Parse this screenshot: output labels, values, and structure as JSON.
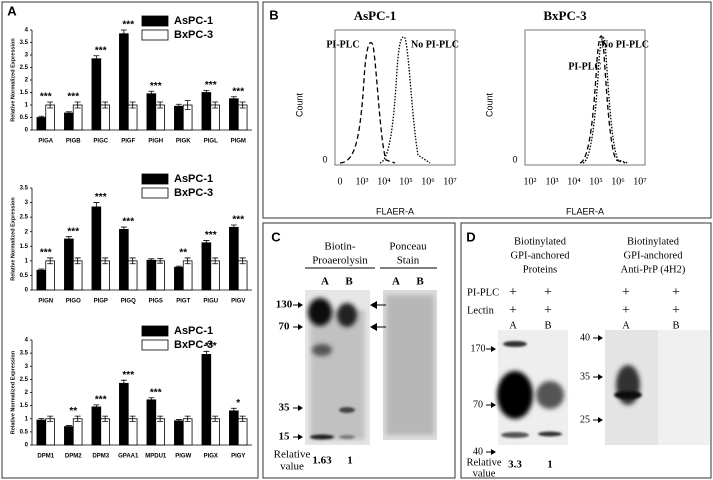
{
  "chart_data": [
    {
      "type": "bar",
      "y_label": "Relative Normalized Expression",
      "categories": [
        "PIGA",
        "PIGB",
        "PIGC",
        "PIGF",
        "PIGH",
        "PIGK",
        "PIGL",
        "PIGM"
      ],
      "series": [
        {
          "name": "AsPC-1",
          "color": "#000000",
          "values": [
            0.5,
            0.68,
            2.85,
            3.85,
            1.45,
            0.95,
            1.5,
            1.25
          ],
          "errors": [
            0.05,
            0.05,
            0.12,
            0.15,
            0.1,
            0.08,
            0.08,
            0.08
          ]
        },
        {
          "name": "BxPC-3",
          "color": "#ffffff",
          "values": [
            1,
            1,
            1,
            1,
            1,
            1,
            1,
            1
          ],
          "errors": [
            0.12,
            0.12,
            0.12,
            0.12,
            0.12,
            0.18,
            0.12,
            0.12
          ]
        }
      ],
      "annotations": [
        "***",
        "***",
        "***",
        "***",
        "***",
        null,
        "***",
        "***"
      ],
      "ylim": [
        0,
        4
      ],
      "yticks": [
        0,
        0.5,
        1,
        1.5,
        2,
        2.5,
        3,
        3.5,
        4
      ]
    },
    {
      "type": "bar",
      "y_label": "Relative Normalized Expression",
      "categories": [
        "PIGN",
        "PIGO",
        "PIGP",
        "PIGQ",
        "PIGS",
        "PIGT",
        "PIGU",
        "PIGV"
      ],
      "series": [
        {
          "name": "AsPC-1",
          "color": "#000000",
          "values": [
            0.68,
            1.75,
            2.85,
            2.08,
            1.02,
            0.78,
            1.62,
            2.15
          ],
          "errors": [
            0.04,
            0.08,
            0.15,
            0.08,
            0.05,
            0.04,
            0.08,
            0.08
          ]
        },
        {
          "name": "BxPC-3",
          "color": "#ffffff",
          "values": [
            1,
            1,
            1,
            1,
            1,
            1,
            1,
            1
          ],
          "errors": [
            0.1,
            0.1,
            0.1,
            0.1,
            0.08,
            0.1,
            0.1,
            0.1
          ]
        }
      ],
      "annotations": [
        "***",
        "***",
        "***",
        "***",
        null,
        "**",
        "***",
        "***"
      ],
      "ylim": [
        0,
        3.5
      ],
      "yticks": [
        0,
        0.5,
        1,
        1.5,
        2,
        2.5,
        3,
        3.5
      ]
    },
    {
      "type": "bar",
      "y_label": "Relative Normalized Expression",
      "categories": [
        "DPM1",
        "DPM2",
        "DPM3",
        "GPAA1",
        "MPDU1",
        "PIGW",
        "PIGX",
        "PIGY"
      ],
      "series": [
        {
          "name": "AsPC-1",
          "color": "#000000",
          "values": [
            0.95,
            0.7,
            1.45,
            2.35,
            1.72,
            0.92,
            3.45,
            1.3
          ],
          "errors": [
            0.06,
            0.04,
            0.08,
            0.12,
            0.08,
            0.05,
            0.12,
            0.1
          ]
        },
        {
          "name": "BxPC-3",
          "color": "#ffffff",
          "values": [
            1,
            1,
            1,
            1,
            1,
            1,
            1,
            1
          ],
          "errors": [
            0.1,
            0.1,
            0.1,
            0.1,
            0.1,
            0.1,
            0.1,
            0.1
          ]
        }
      ],
      "annotations": [
        null,
        "**",
        "***",
        "***",
        "***",
        null,
        "***",
        "*"
      ],
      "ylim": [
        0,
        4
      ],
      "yticks": [
        0,
        0.5,
        1,
        1.5,
        2,
        2.5,
        3,
        3.5,
        4
      ]
    }
  ],
  "panel_a": {
    "label": "A"
  },
  "panel_b": {
    "label": "B",
    "y_label": "Count",
    "y_tick": "0",
    "x_label": "FLAER-A",
    "plots": [
      {
        "title": "AsPC-1",
        "curve_labels": [
          "PI-PLC",
          "No PI-PLC"
        ],
        "x_ticks": [
          "0",
          "10³",
          "10⁴",
          "10⁵",
          "10⁶",
          "10⁷"
        ]
      },
      {
        "title": "BxPC-3",
        "curve_labels": [
          "PI-PLC",
          "No PI-PLC"
        ],
        "x_ticks": [
          "10²",
          "10³",
          "10⁴",
          "10⁵",
          "10⁶",
          "10⁷"
        ]
      }
    ]
  },
  "panel_c": {
    "label": "C",
    "headers": [
      [
        "Biotin-",
        "Proaerolysin"
      ],
      [
        "Ponceau",
        "Stain"
      ]
    ],
    "lanes": [
      "A",
      "B",
      "A",
      "B"
    ],
    "markers": [
      "130",
      "70",
      "35",
      "15"
    ],
    "relative_label": [
      "Relative",
      "value"
    ],
    "relative_values": [
      1.63,
      1
    ]
  },
  "panel_d": {
    "label": "D",
    "headers": [
      [
        "Biotinylated",
        "GPI-anchored",
        "Proteins"
      ],
      [
        "Biotinylated",
        "GPI-anchored",
        "Anti-PrP (4H2)"
      ]
    ],
    "rows": [
      {
        "label": "PI-PLC",
        "marks": [
          "+",
          "+",
          "+",
          "+"
        ]
      },
      {
        "label": "Lectin",
        "marks": [
          "+",
          "+",
          "+",
          "+"
        ]
      }
    ],
    "lanes": [
      "A",
      "B",
      "A",
      "B"
    ],
    "markers_left": [
      "170",
      "70",
      "40"
    ],
    "markers_right": [
      "40",
      "35",
      "25"
    ],
    "relative_label": [
      "Relative",
      "value"
    ],
    "relative_values": [
      3.3,
      1
    ]
  }
}
